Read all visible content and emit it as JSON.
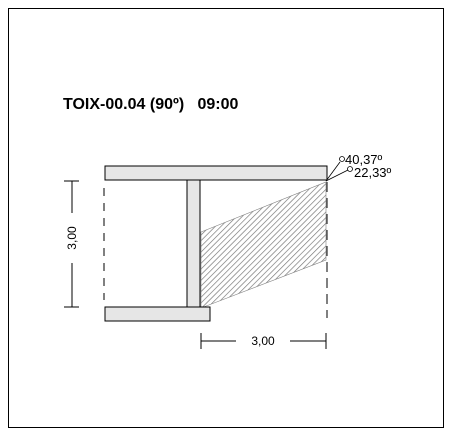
{
  "title": {
    "code": "TOIX-00.04 (90º)",
    "time": "09:00"
  },
  "dimensions": {
    "height": "3,00",
    "width": "3,00"
  },
  "angles": {
    "upper": "40,37º",
    "lower": "22,33º"
  },
  "colors": {
    "stroke": "#000000",
    "fill": "#e6e6e6",
    "hatch": "#707070",
    "background": "#ffffff"
  }
}
